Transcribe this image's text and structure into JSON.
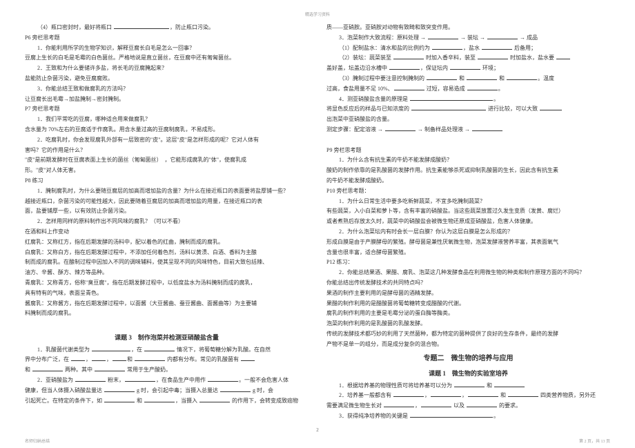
{
  "header": "精选学习资料",
  "pagenum": "2",
  "footer_left": "名师归纳总结",
  "footer_right": "第 2 页，共 13 页",
  "left": [
    "（4）瓶口密封时，最好将瓶口 ____________________，防止瓶口污染。",
    "P6 旁栏思考题",
    "1．你能利用所学的生物学知识，解释豆腐长白毛是怎么一回事？",
    "豆腐上生长的白毛是毛霉的白色菌丝。严格地说是直立菌丝，在豆腐中还有匍匐菌丝。",
    "2．王致和为什么要储许多盐，将长毛的豆腐腌起来？",
    "盐能防止杂菌污染，避免豆腐腐败。",
    "3．你能总结王致和做腐乳的方法吗？",
    "让豆腐长出毛霉→加盐腌制→密封腌制。",
    "P7 旁栏思考题",
    "1．我们平常吃的豆腐，哪种适合用来做腐乳？",
    "含水量为 70%左右的豆腐适于作腐乳。用含水量过高的豆腐制腐乳，不易成形。",
    "2．吃腐乳时，你会发现腐乳外部有一层致密的\"皮\"。这层\"皮\"是怎样形成的呢？它对人体有",
    "害吗？它的作用是什么？",
    "\"皮\"是前期发酵时在豆腐表面上生长的菌丝（匍匐菌丝）　，它能形成腐乳的\"体\"，使腐乳成",
    "形。\"皮\"对人体无害。",
    "P8 练习",
    "1．腌制腐乳时，为什么要随豆腐层的加高而增加盐的含量？为什么在接近瓶口的表面要将盐厚铺一些？",
    "越接近瓶口，杂菌污染的可能性越大，因此要随着豆腐层的加高而增加盐的用量，在接近瓶口的表",
    "面，盐要铺厚一些，以有效防止杂菌污染。",
    "2．怎样用同样的原料制作出不同风味的腐乳？（可以不看）",
    "在酒和料上作变动",
    "红腐乳：又称红方，指在后期发酵的汤料中，配以着色的红曲，腌制而成的腐乳。",
    "白腐乳：又称白方，指在后期发酵过程中，不添加任何着色剂，汤料以黄渍、白酒、香料为主酿",
    "制而成的腐乳。在酿制过程中因加入不同的调味辅料，使其呈现不同的风味特色，目前大致包括辣、",
    "油方、辛酱、酥方、辣方等品种。",
    "青腐乳：又称青方，俗称\"臭豆腐\"，指在后期发酵过程中，以低度盐水为汤料腌制而成的腐乳，",
    "具有特有的气味，表面呈青色。",
    "酱腐乳：又称酱方，指在后期发酵过程中，以面酱（大豆酱曲、蚕豆酱曲、面酱曲等）为主要辅",
    "料腌制而成的腐乳。",
    "",
    "TOPIC:课题 3　制作泡菜并检测亚硝酸盐含量",
    "1．乳酸菌代谢类型为 ______________，在 ___________ 情况下，将葡萄糖分解为乳酸。在自然",
    "界中分布广泛，在 _____，_____，_____和 ___________ 内都有分布。常见的乳酸菌有 _____",
    "和 ___________ 两种。其中 ___________ 常用于生产酸奶。",
    "2．亚硝酸盐为 ___________ 粉末，___________，在食品生产中用作 ___________。一般不会危害人体",
    "健康，但当人体摄入硝酸盐量达 ___________ g 时，会引起中毒；当摄入总量达 ___________ g 时，会",
    "引起死亡。在特定的条件下，如 ___________ 和 ___________，当摄入 ___________ 的作用下，会转变成致癌物"
  ],
  "right": [
    "质——亚硝胺。亚硝胺对动物有致畸和致突变作用。",
    "3．泡菜制作大致流程：原料处理 → ___________ → 装坛 → ___________ → 成品",
    "（1）配制盐水：清水和盐的比例约为 ___________，盐水 ___________ 后备用；",
    "（2）装坛：蔬菜装至 ___________ 时加入香辛料，装至 ___________ 时加盐水，盐水要 _____",
    "盖好盖，坛盖边沿水槽中 ___________，保证坛内 ___________ 环境；",
    "（3）腌制过程中要注意控制腌制的 ___________ 和 ___________ 和 ___________。温度",
    "过高，食盐用量不足 10%、___________ 过短，容易造成 ___________。",
    "4．测亚硝酸盐含量的原理是 _________________________________________________。",
    "将显色反应后的样品与已知浓度的 ___________________________ 进行比较，可以大致 ________",
    "出泡菜中亚硝酸盐的含量。",
    "测定步骤：配定溶液 → ___________ → 制备样品处理液 → ___________",
    "",
    "P9 旁栏思考题",
    "1．为什么含有抗生素的牛奶不能发酵成酸奶？",
    "酸奶的制作依靠的是乳酸菌的发酵作用。抗生素能够杀死或抑制乳酸菌的生长，因此含有抗生素",
    "的牛奶不能发酵成酸奶。",
    "P10 旁栏思考题：",
    "1．为什么日常生活中要多吃新鲜蔬菜，不宜多吃腌制蔬菜？",
    "有些蔬菜，入小白菜和萝卜等，含有丰富的硝酸盐。当这些蔬菜放置过久发生变质（发黄、腐烂）",
    "或者煮熟后存放太久时，蔬菜中的硝酸盐会被微生物还原成亚硝酸盐，危害人体健康。",
    "2．为什么泡菜坛内有时会长一层白膜？你认为这层白膜是怎么形成的？",
    "形成白膜是由于产膜酵母的繁殖。酵母菌是兼性厌氧微生物，泡菜发酵液营养丰富，其表面氧气",
    "含量也很丰富，适合酵母菌繁殖。",
    "P12 练习：",
    "2．你能总结果酒、果醋、腐乳、泡菜这几种发酵食品在利用微生物的种类和制作原理方面的不同吗？",
    "你能总结出传统发酵技术的共同特点吗？",
    "果酒的制作主要利用的是酵母菌的酒精发酵。",
    "果醋的制作利用的是醋酸菌将葡萄糖转变成醋酸的代谢。",
    "腐乳的制作利用的主要是毛霉分泌的蛋白酶等酶类。",
    "泡菜的制作利用的是乳酸菌的乳酸发酵。",
    "传统的发酵技术都巧妙的利用了天然菌种，都为特定的菌种提供了良好的生存条件，最终的发酵",
    "产物不是单一的组分，而是成分复杂的混合物。",
    "TOPIC2:专题二　微生物的培养与应用",
    "TOPIC:课题 1　微生物的实验室培养",
    "1．根据培养基的物理性质可将培养基可以分为 ___________ 和 ___________",
    "2．培养基一般都含有 ___________，___________，___________ 和 ___________ 四类营养物质，另外还",
    "需要满足微生物生长对 ___________，___________ 以及 ___________ 的要求。",
    "3．获得纯净培养物的关键是 ___________________________________________________________________。"
  ]
}
